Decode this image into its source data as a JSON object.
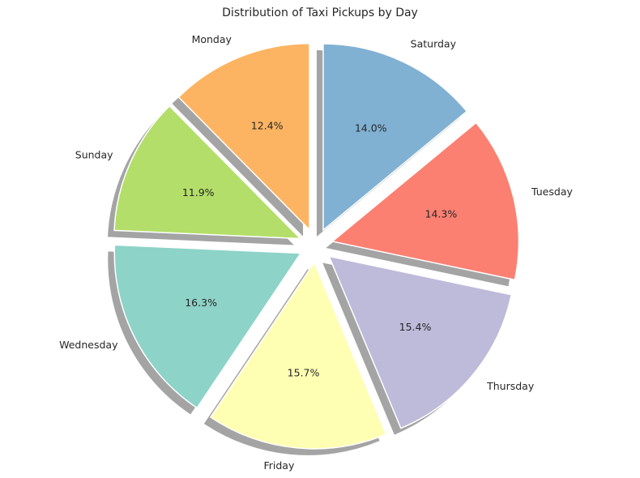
{
  "chart_data": {
    "type": "pie",
    "title": "Distribution of Taxi Pickups by Day",
    "start_angle_deg": 90,
    "direction": "clockwise",
    "shadow": true,
    "exploded": true,
    "slices": [
      {
        "label": "Saturday",
        "value": 14.0,
        "pct_label": "14.0%",
        "color": "#80b1d3"
      },
      {
        "label": "Tuesday",
        "value": 14.3,
        "pct_label": "14.3%",
        "color": "#fb8072"
      },
      {
        "label": "Thursday",
        "value": 15.4,
        "pct_label": "15.4%",
        "color": "#bebada"
      },
      {
        "label": "Friday",
        "value": 15.7,
        "pct_label": "15.7%",
        "color": "#ffffb3"
      },
      {
        "label": "Wednesday",
        "value": 16.3,
        "pct_label": "16.3%",
        "color": "#8dd3c7"
      },
      {
        "label": "Sunday",
        "value": 11.9,
        "pct_label": "11.9%",
        "color": "#b3de69"
      },
      {
        "label": "Monday",
        "value": 12.4,
        "pct_label": "12.4%",
        "color": "#fdb462"
      }
    ]
  }
}
